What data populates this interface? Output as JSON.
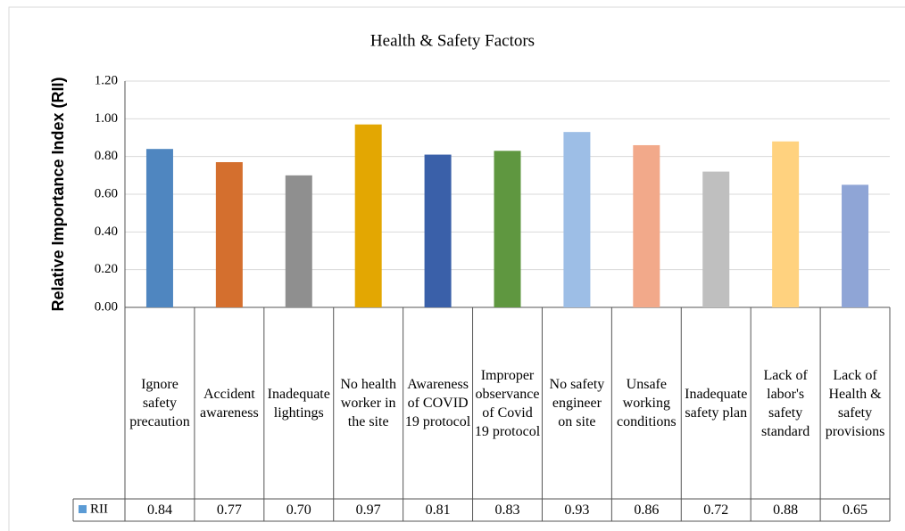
{
  "chart_data": {
    "type": "bar",
    "title": "Health & Safety Factors",
    "y_label": "Relative Importance Index (RII)",
    "categories": [
      "Ignore safety precaution",
      "Accident awareness",
      "Inadequate lightings",
      "No health worker in the site",
      "Awareness of COVID 19 protocol",
      "Improper observance of Covid 19 protocol",
      "No safety engineer on site",
      "Unsafe working conditions",
      "Inadequate safety plan",
      "Lack of labor's safety standard",
      "Lack of Health & safety provisions"
    ],
    "series": [
      {
        "name": "RII",
        "color": "#5b9bd5",
        "colors": [
          "#4f86c0",
          "#d46f2e",
          "#8f8f8f",
          "#e3a702",
          "#3a60a9",
          "#5f9740",
          "#9dbee6",
          "#f2a98a",
          "#bfbfbf",
          "#ffd27f",
          "#8fa5d6"
        ],
        "values": [
          0.84,
          0.77,
          0.7,
          0.97,
          0.81,
          0.83,
          0.93,
          0.86,
          0.72,
          0.88,
          0.65
        ],
        "value_labels": [
          "0.84",
          "0.77",
          "0.70",
          "0.97",
          "0.81",
          "0.83",
          "0.93",
          "0.86",
          "0.72",
          "0.88",
          "0.65"
        ]
      }
    ],
    "ylim": [
      0,
      1.2
    ],
    "yticks": [
      {
        "value": 0,
        "label": "0.00"
      },
      {
        "value": 0.2,
        "label": "0.20"
      },
      {
        "value": 0.4,
        "label": "0.40"
      },
      {
        "value": 0.6,
        "label": "0.60"
      },
      {
        "value": 0.8,
        "label": "0.80"
      },
      {
        "value": 1,
        "label": "1.00"
      },
      {
        "value": 1.2,
        "label": "1.20"
      }
    ],
    "grid": true
  }
}
